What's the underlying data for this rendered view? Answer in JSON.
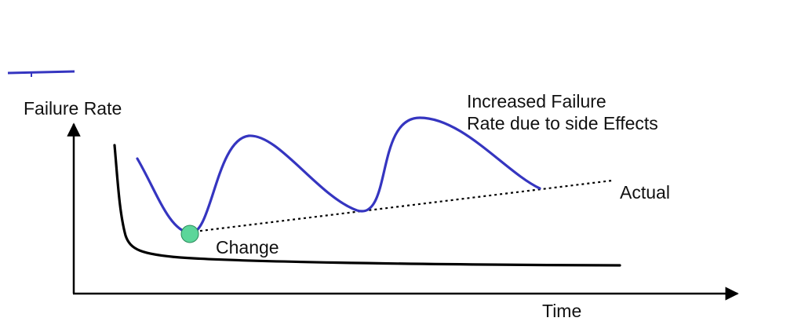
{
  "labels": {
    "y_axis": "Failure Rate",
    "x_axis": "Time",
    "annotation_line1": "Increased Failure",
    "annotation_line2": "Rate due to side Effects",
    "actual": "Actual",
    "change": "Change"
  },
  "colors": {
    "actual_curve": "#3535c0",
    "change_marker_fill": "#5cd69a",
    "change_marker_stroke": "#2a8a5a",
    "axes": "#000000",
    "ideal_curve": "#000000",
    "trend_line": "#000000"
  }
}
